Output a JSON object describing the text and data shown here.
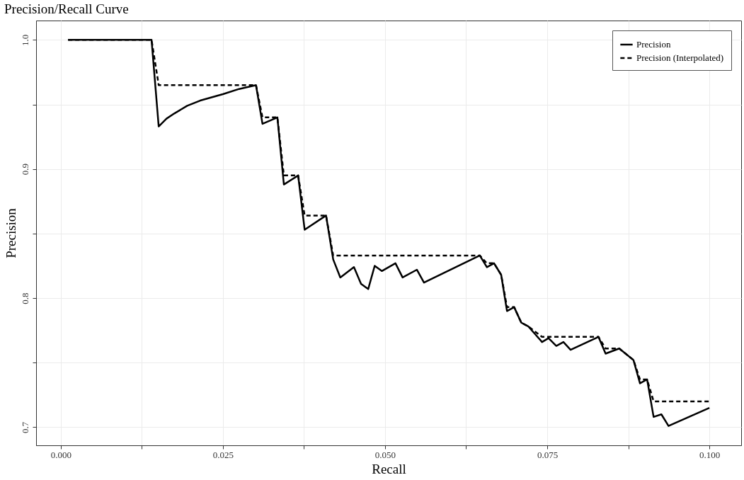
{
  "chart_data": {
    "type": "line",
    "title": "Precision/Recall Curve",
    "xlabel": "Recall",
    "ylabel": "Precision",
    "xlim": [
      -0.0038,
      0.1049
    ],
    "ylim": [
      0.686,
      1.015
    ],
    "xticks": [
      {
        "value": 0,
        "label": "0.000"
      },
      {
        "value": 0.0125,
        "label": null
      },
      {
        "value": 0.025,
        "label": "0.025"
      },
      {
        "value": 0.0375,
        "label": null
      },
      {
        "value": 0.05,
        "label": "0.050"
      },
      {
        "value": 0.0625,
        "label": null
      },
      {
        "value": 0.075,
        "label": "0.075"
      },
      {
        "value": 0.0875,
        "label": null
      },
      {
        "value": 0.1,
        "label": "0.100"
      }
    ],
    "yticks": [
      {
        "value": 0.7,
        "label": "0.7"
      },
      {
        "value": 0.75,
        "label": null
      },
      {
        "value": 0.8,
        "label": "0.8"
      },
      {
        "value": 0.85,
        "label": null
      },
      {
        "value": 0.9,
        "label": "0.9"
      },
      {
        "value": 0.95,
        "label": null
      },
      {
        "value": 1.0,
        "label": "1.0"
      }
    ],
    "grid": true,
    "legend": "top right",
    "x": [
      0.00113,
      0.014,
      0.0151,
      0.0163,
      0.0175,
      0.0195,
      0.0215,
      0.025,
      0.0275,
      0.0301,
      0.0311,
      0.0334,
      0.0344,
      0.0366,
      0.0376,
      0.0409,
      0.042,
      0.0431,
      0.0452,
      0.0463,
      0.0474,
      0.0484,
      0.0495,
      0.0516,
      0.0527,
      0.0549,
      0.056,
      0.0646,
      0.0657,
      0.0668,
      0.0679,
      0.0688,
      0.0699,
      0.071,
      0.0721,
      0.0742,
      0.0752,
      0.0764,
      0.0775,
      0.0786,
      0.0829,
      0.084,
      0.0861,
      0.0883,
      0.0893,
      0.0904,
      0.0914,
      0.0926,
      0.0937,
      0.1
    ],
    "series": [
      {
        "name": "Precision",
        "color": "#000000",
        "line_style": "solid",
        "values": [
          1.0,
          1.0,
          0.933,
          0.939,
          0.943,
          0.949,
          0.953,
          0.958,
          0.962,
          0.965,
          0.935,
          0.94,
          0.888,
          0.895,
          0.853,
          0.864,
          0.83,
          0.816,
          0.824,
          0.811,
          0.807,
          0.825,
          0.821,
          0.827,
          0.816,
          0.822,
          0.812,
          0.833,
          0.824,
          0.827,
          0.818,
          0.79,
          0.793,
          0.781,
          0.778,
          0.766,
          0.769,
          0.763,
          0.766,
          0.76,
          0.77,
          0.757,
          0.761,
          0.752,
          0.734,
          0.737,
          0.708,
          0.71,
          0.701,
          0.715
        ]
      },
      {
        "name": "Precision (Interpolated)",
        "color": "#000000",
        "line_style": "dashed",
        "values": [
          1.0,
          1.0,
          0.965,
          0.965,
          0.965,
          0.965,
          0.965,
          0.965,
          0.965,
          0.965,
          0.94,
          0.94,
          0.895,
          0.895,
          0.864,
          0.864,
          0.833,
          0.833,
          0.833,
          0.833,
          0.833,
          0.833,
          0.833,
          0.833,
          0.833,
          0.833,
          0.833,
          0.833,
          0.827,
          0.827,
          0.818,
          0.793,
          0.793,
          0.781,
          0.778,
          0.77,
          0.77,
          0.77,
          0.77,
          0.77,
          0.77,
          0.761,
          0.761,
          0.752,
          0.737,
          0.737,
          0.72,
          0.72,
          0.72,
          0.72
        ]
      }
    ]
  }
}
